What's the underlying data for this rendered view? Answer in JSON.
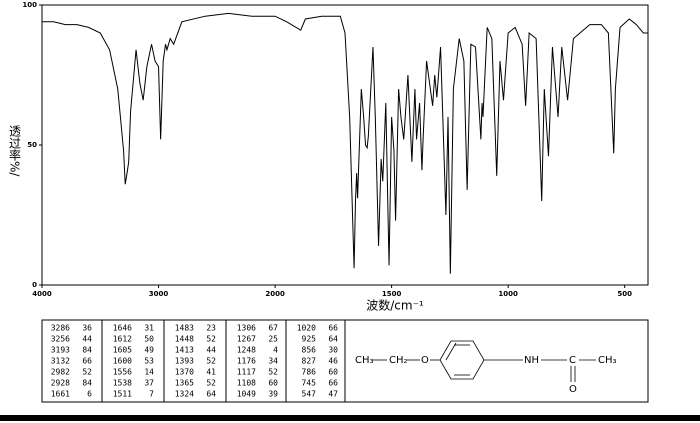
{
  "chart_data": {
    "type": "line",
    "xlabel": "波数/cm⁻¹",
    "ylabel": "透过率%/",
    "x": [
      4000,
      3900,
      3800,
      3700,
      3600,
      3500,
      3420,
      3350,
      3300,
      3286,
      3270,
      3256,
      3240,
      3210,
      3193,
      3160,
      3132,
      3100,
      3060,
      3030,
      3000,
      2982,
      2960,
      2940,
      2928,
      2900,
      2870,
      2800,
      2600,
      2400,
      2200,
      2000,
      1950,
      1890,
      1870,
      1800,
      1720,
      1700,
      1680,
      1661,
      1655,
      1650,
      1646,
      1630,
      1620,
      1612,
      1605,
      1600,
      1580,
      1570,
      1556,
      1545,
      1538,
      1525,
      1511,
      1500,
      1490,
      1483,
      1470,
      1460,
      1448,
      1430,
      1413,
      1400,
      1393,
      1380,
      1370,
      1365,
      1350,
      1324,
      1315,
      1306,
      1290,
      1267,
      1258,
      1248,
      1235,
      1210,
      1190,
      1176,
      1160,
      1140,
      1117,
      1112,
      1108,
      1090,
      1070,
      1049,
      1035,
      1020,
      1000,
      970,
      940,
      925,
      910,
      880,
      856,
      845,
      827,
      810,
      786,
      770,
      745,
      720,
      650,
      600,
      570,
      547,
      540,
      520,
      480,
      450,
      420,
      400
    ],
    "series": [
      {
        "color": "#000000",
        "values": [
          94,
          94,
          93,
          93,
          92,
          90,
          84,
          70,
          48,
          36,
          40,
          44,
          62,
          76,
          84,
          72,
          66,
          78,
          86,
          80,
          78,
          52,
          80,
          86,
          84,
          88,
          86,
          94,
          96,
          97,
          96,
          96,
          94,
          91,
          95,
          96,
          96,
          90,
          60,
          6,
          30,
          40,
          31,
          70,
          60,
          50,
          49,
          53,
          85,
          60,
          14,
          45,
          37,
          65,
          7,
          60,
          48,
          23,
          70,
          60,
          52,
          75,
          44,
          70,
          52,
          65,
          41,
          52,
          80,
          64,
          75,
          67,
          85,
          25,
          60,
          4,
          70,
          88,
          80,
          34,
          86,
          85,
          52,
          65,
          60,
          92,
          88,
          39,
          80,
          66,
          90,
          92,
          86,
          64,
          90,
          88,
          30,
          70,
          46,
          85,
          60,
          85,
          66,
          88,
          93,
          93,
          90,
          47,
          70,
          92,
          95,
          93,
          90,
          90
        ]
      }
    ],
    "xlim": [
      4000,
      400
    ],
    "ylim": [
      0,
      100
    ],
    "xticks": [
      4000,
      3000,
      2000,
      1500,
      1000,
      500
    ],
    "yticks": [
      0,
      50,
      100
    ],
    "x_scale_break": 2000
  },
  "peak_table": {
    "columns": [
      [
        [
          3286,
          36
        ],
        [
          3256,
          44
        ],
        [
          3193,
          84
        ],
        [
          3132,
          66
        ],
        [
          2982,
          52
        ],
        [
          2928,
          84
        ],
        [
          1661,
          6
        ]
      ],
      [
        [
          1646,
          31
        ],
        [
          1612,
          50
        ],
        [
          1605,
          49
        ],
        [
          1600,
          53
        ],
        [
          1556,
          14
        ],
        [
          1538,
          37
        ],
        [
          1511,
          7
        ]
      ],
      [
        [
          1483,
          23
        ],
        [
          1448,
          52
        ],
        [
          1413,
          44
        ],
        [
          1393,
          52
        ],
        [
          1370,
          41
        ],
        [
          1365,
          52
        ],
        [
          1324,
          64
        ]
      ],
      [
        [
          1306,
          67
        ],
        [
          1267,
          25
        ],
        [
          1248,
          4
        ],
        [
          1176,
          34
        ],
        [
          1117,
          52
        ],
        [
          1108,
          60
        ],
        [
          1049,
          39
        ]
      ],
      [
        [
          1020,
          66
        ],
        [
          925,
          64
        ],
        [
          856,
          30
        ],
        [
          827,
          46
        ],
        [
          786,
          60
        ],
        [
          745,
          66
        ],
        [
          547,
          47
        ]
      ]
    ]
  },
  "structure": {
    "labels": [
      "CH₃",
      "CH₂",
      "O",
      "NH",
      "C",
      "O",
      "CH₃"
    ]
  }
}
